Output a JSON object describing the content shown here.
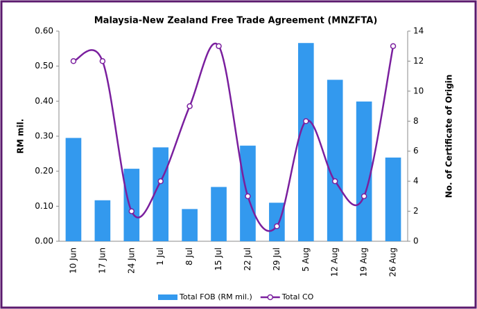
{
  "chart_data": {
    "type": "combo",
    "title": "Malaysia-New Zealand Free Trade Agreement (MNZFTA)",
    "categories": [
      "10 Jun",
      "17 Jun",
      "24 Jun",
      "1 Jul",
      "8 Jul",
      "15 Jul",
      "22 Jul",
      "29 Jul",
      "5 Aug",
      "12 Aug",
      "19 Aug",
      "26 Aug"
    ],
    "series": [
      {
        "name": "Total FOB (RM mil.)",
        "type": "bar",
        "color": "#3399ee",
        "axis": "y",
        "values": [
          0.295,
          0.117,
          0.207,
          0.268,
          0.092,
          0.155,
          0.273,
          0.11,
          0.566,
          0.461,
          0.399,
          0.239
        ]
      },
      {
        "name": "Total CO",
        "type": "line",
        "color": "#7a1f9e",
        "axis": "y2",
        "values": [
          12,
          12,
          2,
          4,
          9,
          13,
          3,
          1,
          8,
          4,
          3,
          13
        ]
      }
    ],
    "ylabel": "RM mil.",
    "y2label": "No. of Certificate of Origin",
    "ylim": [
      0,
      0.6
    ],
    "yticks": [
      {
        "value": 0,
        "label": "0.00"
      },
      {
        "value": 0.1,
        "label": "0.10"
      },
      {
        "value": 0.2,
        "label": "0.20"
      },
      {
        "value": 0.3,
        "label": "0.30"
      },
      {
        "value": 0.4,
        "label": "0.40"
      },
      {
        "value": 0.5,
        "label": "0.50"
      },
      {
        "value": 0.6,
        "label": "0.60"
      }
    ],
    "y2lim": [
      0,
      14
    ],
    "y2ticks": [
      0,
      2,
      4,
      6,
      8,
      10,
      12,
      14
    ]
  }
}
